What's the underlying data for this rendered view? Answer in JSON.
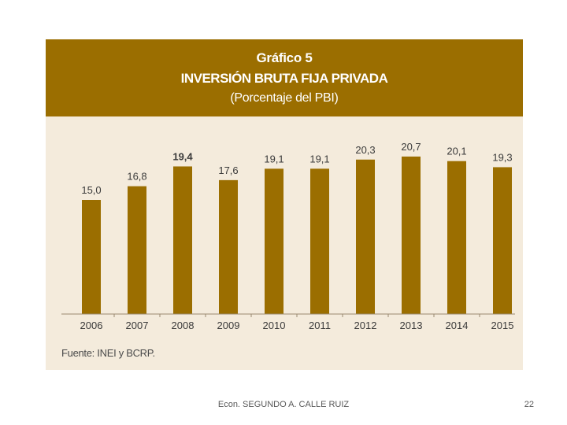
{
  "chart_data": {
    "type": "bar",
    "title_label": "Gráfico 5",
    "title": "INVERSIÓN BRUTA FIJA PRIVADA",
    "subtitle": "(Porcentaje del PBI)",
    "categories": [
      "2006",
      "2007",
      "2008",
      "2009",
      "2010",
      "2011",
      "2012",
      "2013",
      "2014",
      "2015"
    ],
    "values": [
      15.0,
      16.8,
      19.4,
      17.6,
      19.1,
      19.1,
      20.3,
      20.7,
      20.1,
      19.3
    ],
    "data_labels": [
      "15,0",
      "16,8",
      "19,4",
      "17,6",
      "19,1",
      "19,1",
      "20,3",
      "20,7",
      "20,1",
      "19,3"
    ],
    "highlighted": "2008",
    "xlabel": "",
    "ylabel": "",
    "ylim": [
      0,
      21
    ],
    "grid": false,
    "legend": "none",
    "source": "Fuente: INEI y BCRP.",
    "colors": {
      "bar": "#9b6e00",
      "header": "#9b6e00",
      "background": "#f4ebdc"
    }
  },
  "footer": {
    "author": "Econ. SEGUNDO A. CALLE RUIZ",
    "page": "22"
  }
}
